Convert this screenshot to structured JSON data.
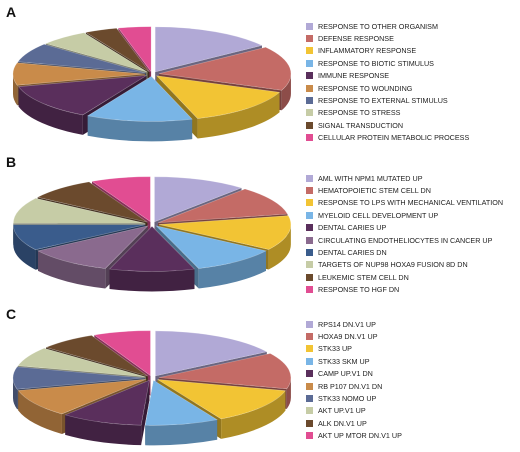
{
  "chart_data": [
    {
      "type": "pie",
      "panel": "A",
      "title": "",
      "categories": [
        "RESPONSE TO OTHER ORGANISM",
        "DEFENSE RESPONSE",
        "INFLAMMATORY RESPONSE",
        "RESPONSE TO BIOTIC STIMULUS",
        "IMMUNE RESPONSE",
        "RESPONSE TO WOUNDING",
        "RESPONSE TO EXTERNAL STIMULUS",
        "RESPONSE TO STRESS",
        "SIGNAL TRANSDUCTION",
        "CELLULAR PROTEIN METABOLIC PROCESS"
      ],
      "values": [
        15,
        16,
        14,
        13,
        13,
        8,
        7,
        6,
        4,
        4
      ],
      "colors": [
        "#b1a9d6",
        "#c46b66",
        "#f2c434",
        "#79b5e6",
        "#5a2f5c",
        "#c98b4a",
        "#5b6b95",
        "#c6cca6",
        "#6b4a2d",
        "#e14d92"
      ],
      "legend_position": "right"
    },
    {
      "type": "pie",
      "panel": "B",
      "title": "",
      "categories": [
        "AML WITH NPM1 MUTATED UP",
        "HEMATOPOIETIC STEM CELL DN",
        "RESPONSE TO LPS WITH MECHANICAL VENTILATION",
        "MYELOID CELL DEVELOPMENT UP",
        "DENTAL CARIES UP",
        "CIRCULATING ENDOTHELIOCYTES IN CANCER UP",
        "DENTAL CARIES DN",
        "TARGETS OF NUP98 HOXA9 FUSION 8D DN",
        "LEUKEMIC STEM CELL DN",
        "RESPONSE TO HGF DN"
      ],
      "values": [
        11,
        10,
        12,
        10,
        10,
        10,
        9,
        9,
        8,
        7
      ],
      "colors": [
        "#b1a9d6",
        "#c46b66",
        "#f2c434",
        "#79b5e6",
        "#5a2f5c",
        "#8a6a8e",
        "#3a5c8c",
        "#c6cca6",
        "#6b4a2d",
        "#e14d92"
      ],
      "legend_position": "right"
    },
    {
      "type": "pie",
      "panel": "C",
      "title": "",
      "categories": [
        "RPS14 DN.V1 UP",
        "HOXA9 DN.V1 UP",
        "STK33 UP",
        "STK33 SKM UP",
        "CAMP UP.V1 DN",
        "RB P107 DN.V1 DN",
        "STK33 NOMO UP",
        "AKT UP.V1 UP",
        "ALK DN.V1 UP",
        "AKT UP MTOR DN.V1 UP"
      ],
      "values": [
        16,
        13,
        13,
        9,
        10,
        10,
        8,
        7,
        7,
        7
      ],
      "colors": [
        "#b1a9d6",
        "#c46b66",
        "#f2c434",
        "#79b5e6",
        "#5a2f5c",
        "#c98b4a",
        "#5b6b95",
        "#c6cca6",
        "#6b4a2d",
        "#e14d92"
      ],
      "legend_position": "right"
    }
  ]
}
